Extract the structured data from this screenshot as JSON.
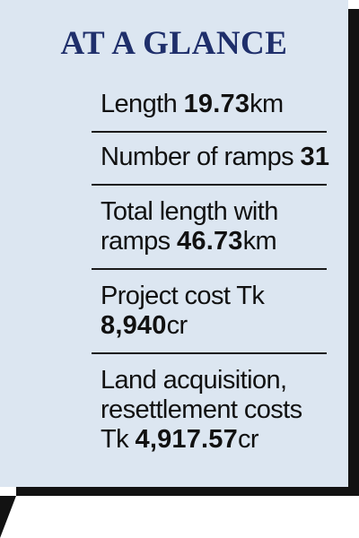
{
  "title": "AT A GLANCE",
  "facts": {
    "length": {
      "label": "Length",
      "value": "19.73",
      "unit": "km"
    },
    "ramps": {
      "label": "Number of ramps",
      "value": "31"
    },
    "total_length": {
      "line1": "Total length with",
      "label": "ramps",
      "value": "46.73",
      "unit": "km"
    },
    "project_cost": {
      "label": "Project cost Tk",
      "value": "8,940",
      "unit": "cr"
    },
    "land_cost": {
      "line1": "Land acquisition,",
      "line2": "resettlement costs",
      "prefix": "Tk",
      "value": "4,917.57",
      "unit": "cr"
    }
  },
  "colors": {
    "panel_background": "#dce6f1",
    "title": "#1f2f6b",
    "shadow": "#121212"
  }
}
